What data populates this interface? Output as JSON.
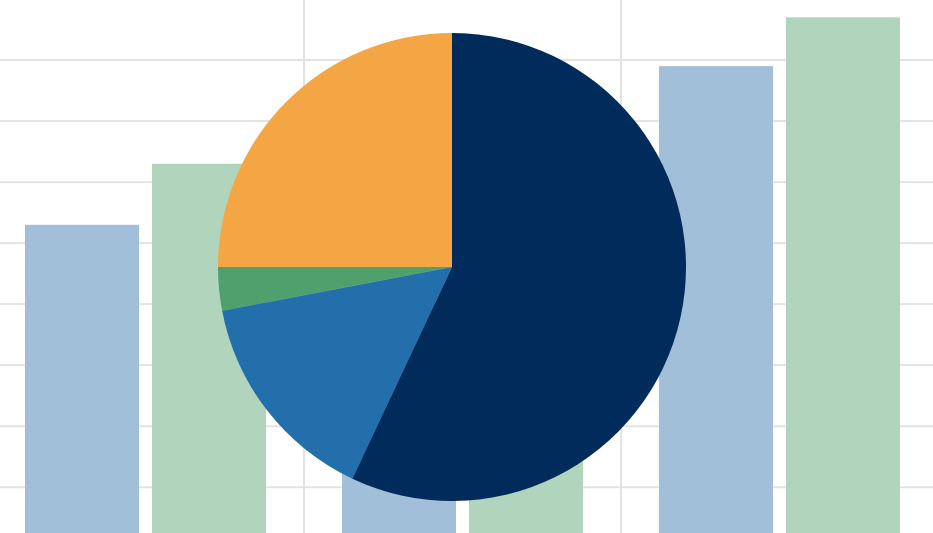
{
  "chart_data": [
    {
      "type": "bar",
      "categories": [
        null,
        null,
        null
      ],
      "series": [
        {
          "color": "#a2bfd9",
          "values": [
            5.3,
            4,
            7.9
          ]
        },
        {
          "color": "#b0d5bc",
          "values": [
            6.3,
            4.5,
            8.7
          ]
        }
      ],
      "ylim": [
        0.25,
        9
      ],
      "yticks": [
        1,
        2,
        3,
        4,
        5,
        6,
        7,
        8
      ],
      "grid": true
    },
    {
      "type": "pie",
      "values": [
        57,
        15,
        3,
        25
      ],
      "colors": [
        "#002b5a",
        "#236fab",
        "#4fa06d",
        "#f3a643"
      ]
    }
  ]
}
